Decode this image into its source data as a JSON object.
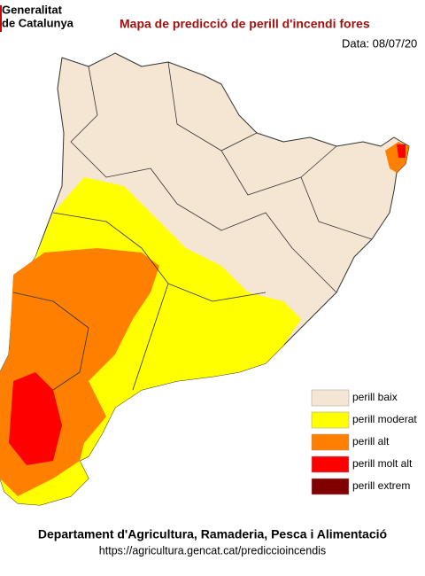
{
  "header": {
    "logo_line1": "Generalitat",
    "logo_line2": "de Catalunya",
    "title": "Mapa de predicció de perill d'incendi fores",
    "date": "Data: 08/07/20"
  },
  "legend": [
    {
      "label": "perill baix",
      "color": "#f5e6d3"
    },
    {
      "label": "perill moderat",
      "color": "#ffff00"
    },
    {
      "label": "perill alt",
      "color": "#ff8000"
    },
    {
      "label": "perill molt alt",
      "color": "#ff0000"
    },
    {
      "label": "perill extrem",
      "color": "#800000"
    }
  ],
  "footer": {
    "department": "Departament d'Agricultura, Ramaderia, Pesca i Alimentació",
    "url": "https://agricultura.gencat.cat/prediccioincendis"
  }
}
